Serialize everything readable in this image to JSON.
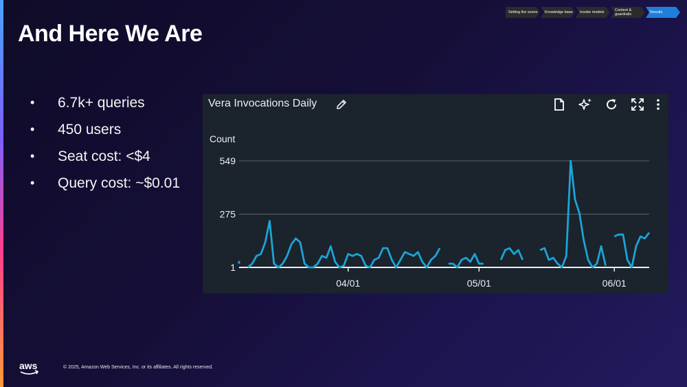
{
  "slide": {
    "title": "And Here We Are",
    "footer": "© 2025, Amazon Web Services, Inc. or its affiliates. All rights reserved.",
    "logo_text": "aws"
  },
  "progress": {
    "steps": [
      {
        "label": "Setting the scene",
        "active": false
      },
      {
        "label": "Knowledge base",
        "active": false
      },
      {
        "label": "Invoke models",
        "active": false
      },
      {
        "label": "Context & guardrails",
        "active": false
      },
      {
        "label": "Results",
        "active": true
      }
    ]
  },
  "bullets": [
    "6.7k+ queries",
    "450 users",
    "Seat cost: <$4",
    "Query cost: ~$0.01"
  ],
  "widget": {
    "title": "Vera Invocations Daily",
    "tool_icons": [
      "document-icon",
      "sparkle-icon",
      "refresh-icon",
      "expand-icon",
      "more-icon"
    ]
  },
  "chart_data": {
    "type": "line",
    "title": "Vera Invocations Daily",
    "ylabel": "Count",
    "xlabel": "",
    "ylim": [
      1,
      549
    ],
    "yticks": [
      1,
      275,
      549
    ],
    "xticks": [
      {
        "index": 25,
        "label": "04/01"
      },
      {
        "index": 55,
        "label": "05/01"
      },
      {
        "index": 86,
        "label": "06/01"
      }
    ],
    "grid": true,
    "color": "#1aa5d6",
    "series": [
      {
        "values": [
          20,
          null,
          1,
          20,
          60,
          70,
          130,
          240,
          20,
          1,
          20,
          60,
          120,
          150,
          130,
          20,
          1,
          1,
          20,
          60,
          50,
          110,
          30,
          1,
          10,
          70,
          60,
          70,
          60,
          10,
          1,
          40,
          50,
          100,
          100,
          40,
          1,
          40,
          80,
          70,
          60,
          80,
          30,
          1,
          40,
          60,
          100,
          null,
          20,
          20,
          1,
          40,
          50,
          30,
          70,
          20,
          20,
          null,
          null,
          null,
          40,
          90,
          100,
          70,
          90,
          40,
          null,
          null,
          null,
          90,
          100,
          40,
          50,
          20,
          1,
          60,
          549,
          350,
          280,
          140,
          40,
          1,
          20,
          110,
          10,
          null,
          160,
          170,
          170,
          40,
          1,
          110,
          160,
          150,
          180
        ]
      }
    ]
  }
}
